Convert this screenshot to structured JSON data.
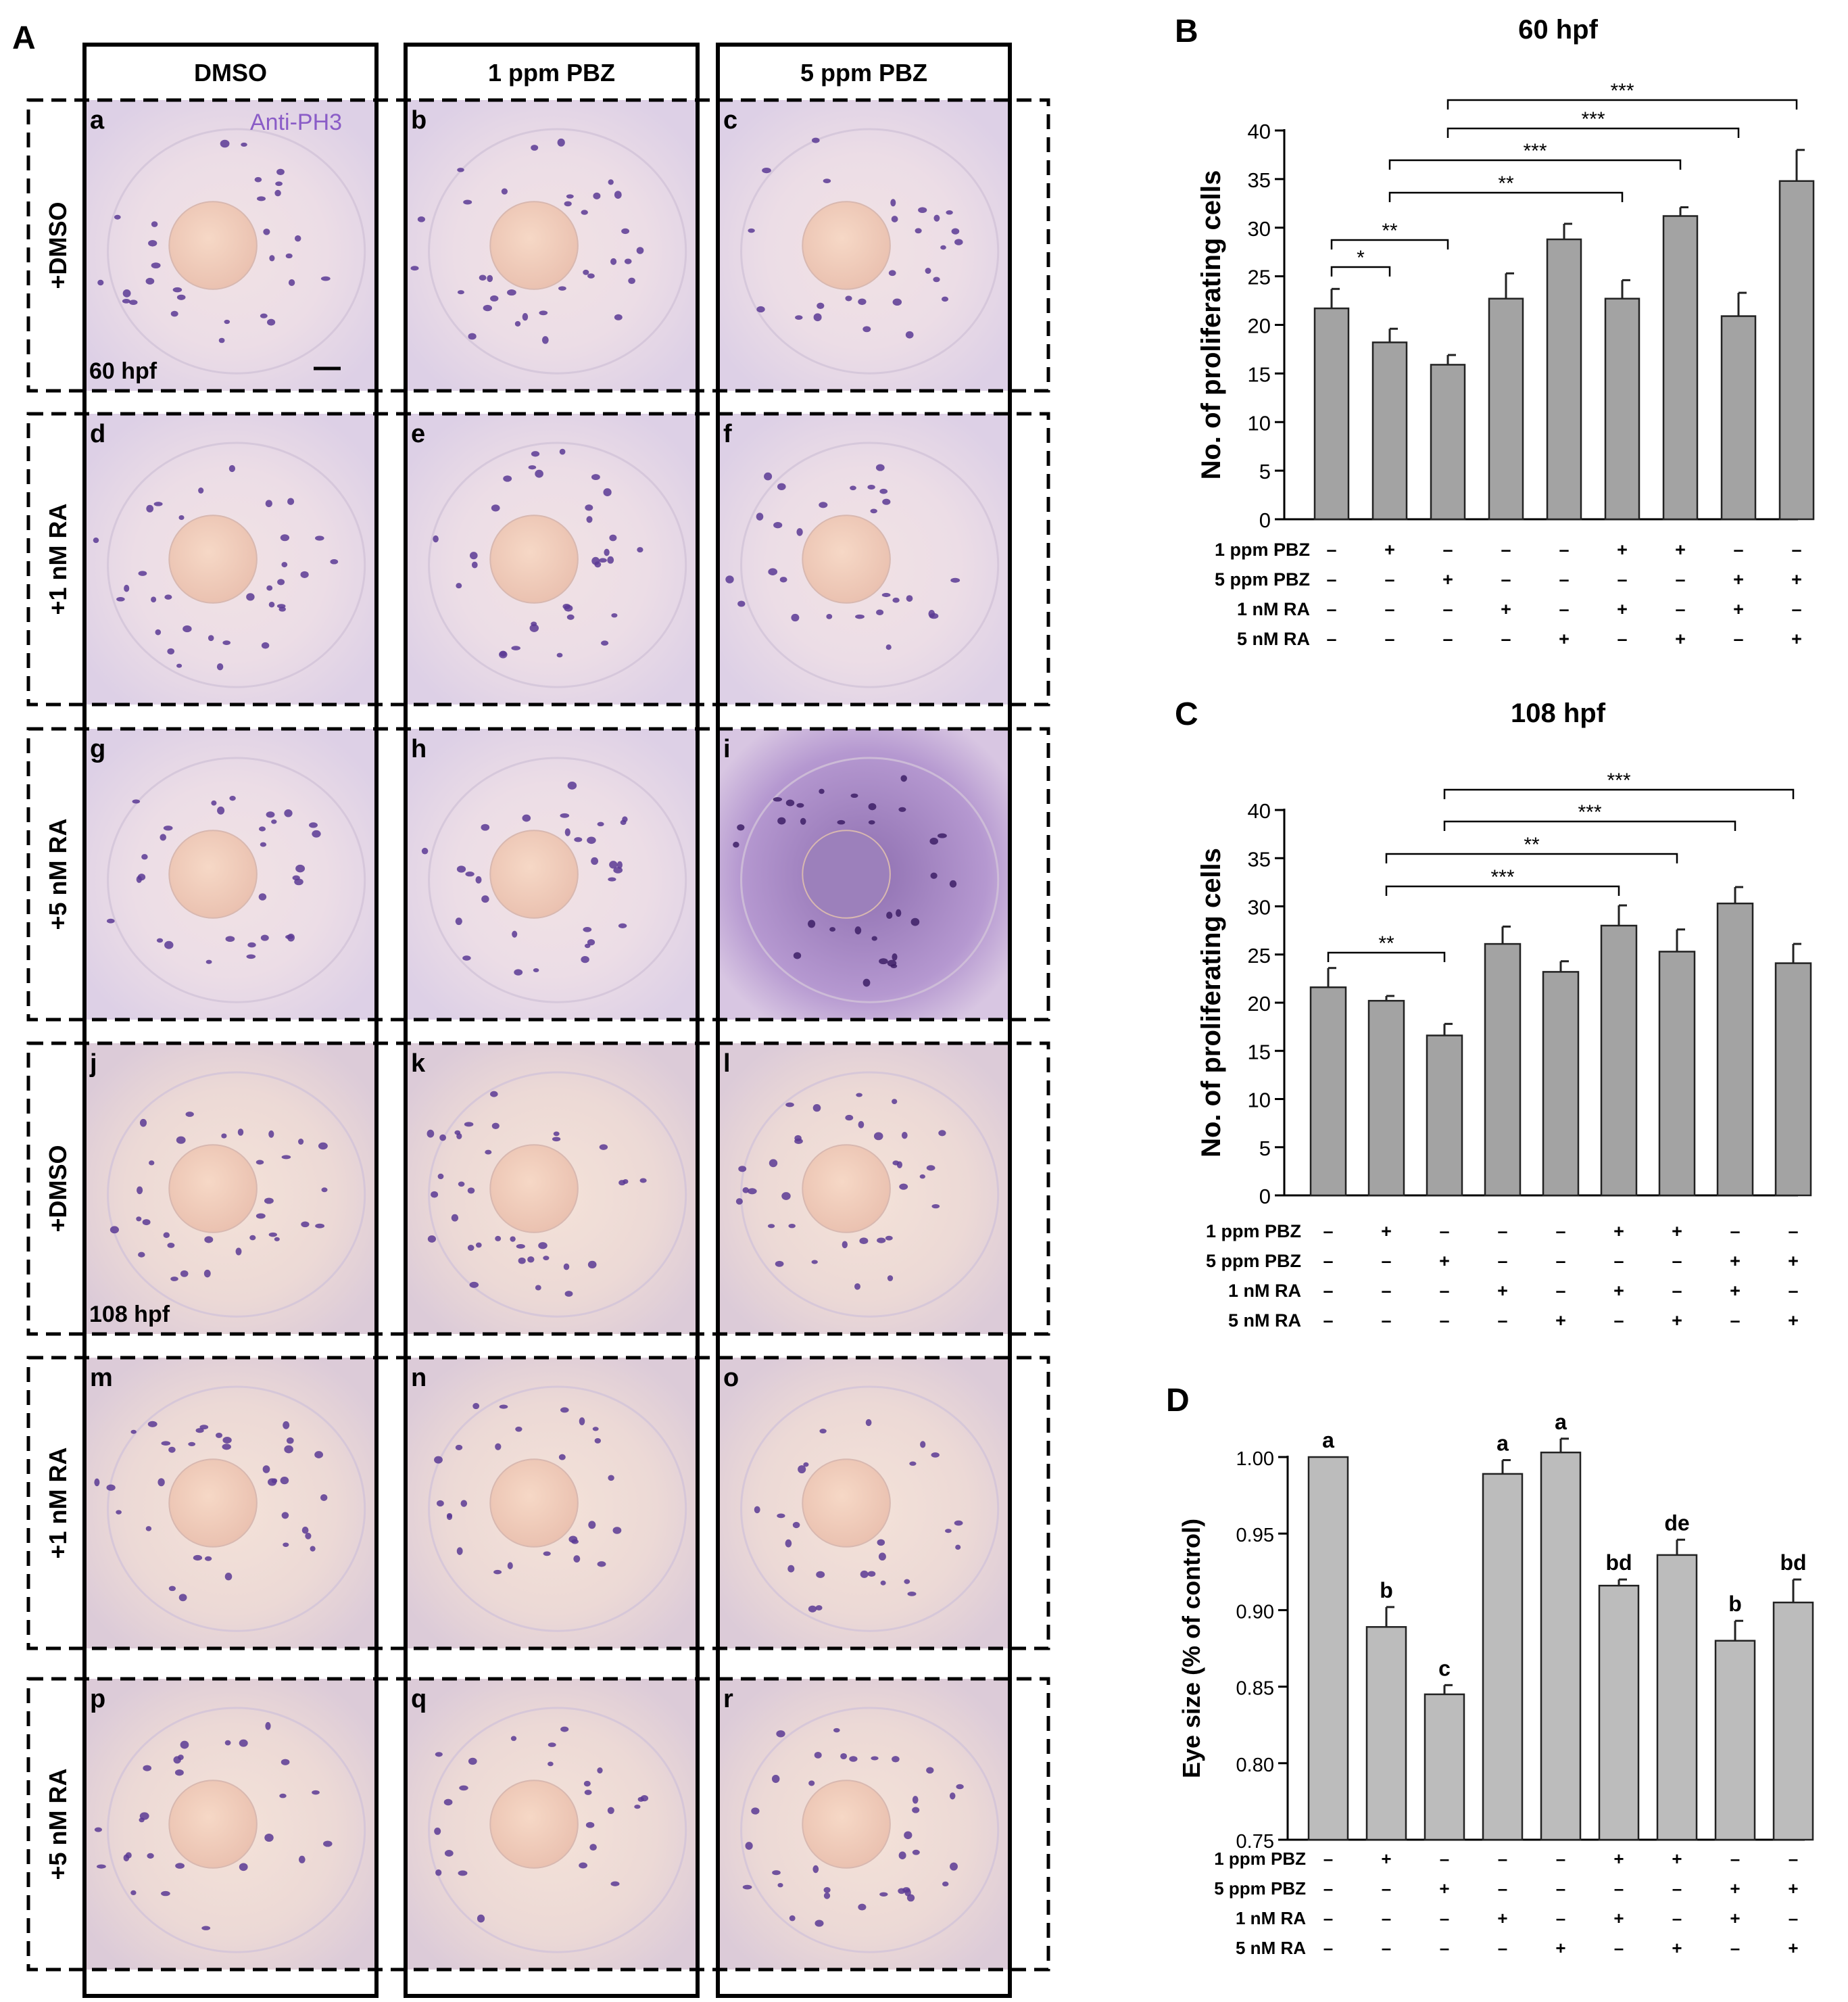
{
  "panel_A": {
    "label": "A",
    "columns": [
      "DMSO",
      "1 ppm PBZ",
      "5 ppm PBZ"
    ],
    "rows": [
      "+DMSO",
      "+1 nM RA",
      "+5 nM RA",
      "+DMSO",
      "+1 nM RA",
      "+5 nM RA"
    ],
    "tiles": [
      "a",
      "b",
      "c",
      "d",
      "e",
      "f",
      "g",
      "h",
      "i",
      "j",
      "k",
      "l",
      "m",
      "n",
      "o",
      "p",
      "q",
      "r"
    ],
    "stain_label": "Anti-PH3",
    "time_labels": [
      "60 hpf",
      "108 hpf"
    ],
    "colors": {
      "stain": "#8a5cc7",
      "eye_background": "#efe2ea",
      "lens": "#f0c8b8"
    }
  },
  "treatment_table": {
    "row_labels": [
      "1 ppm PBZ",
      "5 ppm PBZ",
      "1 nM RA",
      "5 nM RA"
    ],
    "rows": [
      [
        "–",
        "+",
        "–",
        "–",
        "–",
        "+",
        "+",
        "–",
        "–"
      ],
      [
        "–",
        "–",
        "+",
        "–",
        "–",
        "–",
        "–",
        "+",
        "+"
      ],
      [
        "–",
        "–",
        "–",
        "+",
        "–",
        "+",
        "–",
        "+",
        "–"
      ],
      [
        "–",
        "–",
        "–",
        "–",
        "+",
        "–",
        "+",
        "–",
        "+"
      ]
    ]
  },
  "chart_data": [
    {
      "panel": "B",
      "type": "bar",
      "title": "60 hpf",
      "ylabel": "No. of proliferating cells",
      "xlabel": "",
      "ylim": [
        0,
        40
      ],
      "yticks": [
        "0",
        "5",
        "10",
        "15",
        "20",
        "25",
        "30",
        "35",
        "40"
      ],
      "values": [
        21.7,
        18.2,
        15.9,
        22.7,
        28.8,
        22.7,
        31.2,
        20.9,
        34.8
      ],
      "errors": [
        2.0,
        1.4,
        1.0,
        2.6,
        1.6,
        1.9,
        0.9,
        2.4,
        3.2
      ],
      "significance": [
        {
          "from": 1,
          "to": 2,
          "label": "*"
        },
        {
          "from": 1,
          "to": 3,
          "label": "**"
        },
        {
          "from": 2,
          "to": 6,
          "label": "**"
        },
        {
          "from": 2,
          "to": 7,
          "label": "***"
        },
        {
          "from": 3,
          "to": 8,
          "label": "***"
        },
        {
          "from": 3,
          "to": 9,
          "label": "***"
        }
      ]
    },
    {
      "panel": "C",
      "type": "bar",
      "title": "108 hpf",
      "ylabel": "No. of proliferating cells",
      "xlabel": "",
      "ylim": [
        0,
        40
      ],
      "yticks": [
        "0",
        "5",
        "10",
        "15",
        "20",
        "25",
        "30",
        "35",
        "40"
      ],
      "values": [
        21.6,
        20.2,
        16.6,
        26.1,
        23.2,
        28.0,
        25.3,
        30.3,
        24.1
      ],
      "errors": [
        2.0,
        0.5,
        1.2,
        1.8,
        1.1,
        2.1,
        2.3,
        1.7,
        2.0
      ],
      "significance": [
        {
          "from": 1,
          "to": 3,
          "label": "**"
        },
        {
          "from": 2,
          "to": 6,
          "label": "***"
        },
        {
          "from": 2,
          "to": 7,
          "label": "**"
        },
        {
          "from": 3,
          "to": 8,
          "label": "***"
        },
        {
          "from": 3,
          "to": 9,
          "label": "***"
        }
      ]
    },
    {
      "panel": "D",
      "type": "bar",
      "title": "",
      "ylabel": "Eye size (% of control)",
      "xlabel": "",
      "ylim": [
        0.75,
        1.0
      ],
      "yticks": [
        "0.75",
        "0.80",
        "0.85",
        "0.90",
        "0.95",
        "1.00"
      ],
      "values": [
        1.0,
        0.889,
        0.845,
        0.989,
        1.003,
        0.916,
        0.936,
        0.88,
        0.905
      ],
      "errors": [
        0,
        0.013,
        0.006,
        0.009,
        0.009,
        0.004,
        0.01,
        0.013,
        0.015
      ],
      "bar_labels": [
        "a",
        "b",
        "c",
        "a",
        "a",
        "bd",
        "de",
        "b",
        "bd"
      ]
    }
  ]
}
